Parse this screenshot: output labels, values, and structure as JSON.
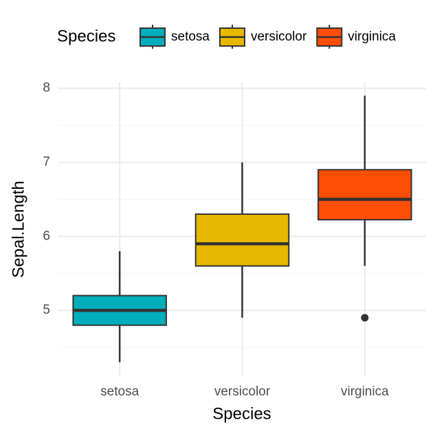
{
  "chart_data": {
    "type": "boxplot",
    "legend_title": "Species",
    "x_label": "Species",
    "y_label": "Sepal.Length",
    "categories": [
      "setosa",
      "versicolor",
      "virginica"
    ],
    "series": [
      {
        "name": "setosa",
        "color": "#00afbb",
        "min": 4.3,
        "q1": 4.8,
        "median": 5.0,
        "q3": 5.2,
        "max": 5.8,
        "outliers": []
      },
      {
        "name": "versicolor",
        "color": "#e7b800",
        "min": 4.9,
        "q1": 5.6,
        "median": 5.9,
        "q3": 6.3,
        "max": 7.0,
        "outliers": []
      },
      {
        "name": "virginica",
        "color": "#fc4e07",
        "min": 5.6,
        "q1": 6.225,
        "median": 6.5,
        "q3": 6.9,
        "max": 7.9,
        "outliers": [
          4.9
        ]
      }
    ],
    "ylim": [
      4.12,
      8.08
    ],
    "yticks": [
      5,
      6,
      7,
      8
    ],
    "minor_yticks": [
      4.5,
      5.5,
      6.5,
      7.5
    ],
    "grid": true,
    "legend_position": "top"
  }
}
